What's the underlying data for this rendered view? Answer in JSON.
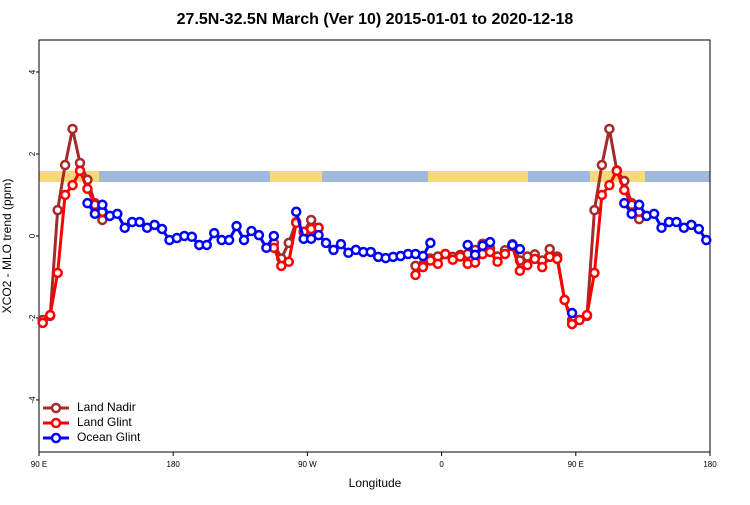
{
  "chart_data": {
    "type": "line",
    "title": "27.5N-32.5N March (Ver 10)   2015-01-01 to 2020-12-18",
    "xlabel": "Longitude",
    "ylabel": "XCO2 - MLO trend (ppm)",
    "xlim": [
      90,
      540
    ],
    "ylim": [
      -5.27,
      4.78
    ],
    "xticks": [
      {
        "value": 90,
        "label": "90 E"
      },
      180,
      {
        "value": 270,
        "label": "90 W"
      },
      {
        "value": 360,
        "label": "0"
      },
      {
        "value": 450,
        "label": "90 E"
      },
      {
        "value": 540,
        "label": "180"
      }
    ],
    "yticks": [
      -4,
      -2,
      0,
      2,
      4
    ],
    "legend": "bottom-left",
    "series": [
      {
        "name": "Land Nadir",
        "color": "#a52a2a",
        "x": [
          92.5,
          97.5,
          102.5,
          107.5,
          112.5,
          117.5,
          122.5,
          127.5,
          132.5,
          137.5,
          142.5,
          147.5,
          152.5,
          157.5,
          162.5,
          167.5,
          172.5,
          177.5,
          182.5,
          187.5,
          192.5,
          197.5,
          202.5,
          207.5,
          212.5,
          217.5,
          222.5,
          227.5,
          232.5,
          237.5,
          242.5,
          247.5,
          252.5,
          257.5,
          262.5,
          267.5,
          272.5,
          277.5,
          282.5,
          287.5,
          292.5,
          297.5,
          302.5,
          307.5,
          312.5,
          317.5,
          322.5,
          327.5,
          332.5,
          337.5,
          342.5,
          347.5,
          352.5,
          357.5,
          362.5,
          367.5,
          372.5,
          377.5,
          382.5,
          387.5,
          392.5,
          397.5,
          402.5,
          407.5,
          412.5,
          417.5,
          422.5,
          427.5,
          432.5,
          437.5,
          442.5,
          447.5,
          452.5,
          457.5,
          462.5,
          467.5,
          472.5,
          477.5,
          482.5,
          487.5,
          492.5
        ],
        "values": [
          -2.05,
          -1.95,
          0.63,
          1.73,
          2.61,
          1.78,
          1.37,
          0.8,
          0.39,
          null,
          null,
          null,
          null,
          null,
          null,
          null,
          null,
          null,
          null,
          null,
          null,
          null,
          null,
          null,
          null,
          null,
          null,
          null,
          null,
          null,
          null,
          -0.17,
          -0.55,
          -0.17,
          0.34,
          0.1,
          0.39,
          0.2,
          null,
          null,
          null,
          null,
          null,
          null,
          null,
          null,
          null,
          null,
          null,
          null,
          -0.73,
          -0.7,
          -0.55,
          -0.5,
          -0.44,
          -0.51,
          -0.46,
          -0.44,
          -0.34,
          -0.19,
          -0.3,
          -0.5,
          -0.35,
          -0.2,
          -0.6,
          -0.5,
          -0.45,
          -0.6,
          -0.32,
          -0.5,
          -1.56,
          -2.05,
          -2.05,
          -1.95,
          0.63,
          1.73,
          2.61,
          1.6,
          1.34,
          0.8,
          0.41
        ]
      },
      {
        "name": "Land Glint",
        "color": "#ff0000",
        "x": [
          92.5,
          97.5,
          102.5,
          107.5,
          112.5,
          117.5,
          122.5,
          127.5,
          132.5,
          137.5,
          142.5,
          147.5,
          152.5,
          157.5,
          162.5,
          167.5,
          172.5,
          177.5,
          182.5,
          187.5,
          192.5,
          197.5,
          202.5,
          207.5,
          212.5,
          217.5,
          222.5,
          227.5,
          232.5,
          237.5,
          242.5,
          247.5,
          252.5,
          257.5,
          262.5,
          267.5,
          272.5,
          277.5,
          282.5,
          287.5,
          292.5,
          297.5,
          302.5,
          307.5,
          312.5,
          317.5,
          322.5,
          327.5,
          332.5,
          337.5,
          342.5,
          347.5,
          352.5,
          357.5,
          362.5,
          367.5,
          372.5,
          377.5,
          382.5,
          387.5,
          392.5,
          397.5,
          402.5,
          407.5,
          412.5,
          417.5,
          422.5,
          427.5,
          432.5,
          437.5,
          442.5,
          447.5,
          452.5,
          457.5,
          462.5,
          467.5,
          472.5,
          477.5,
          482.5,
          487.5,
          492.5
        ],
        "values": [
          -2.12,
          -1.93,
          -0.9,
          1.0,
          1.24,
          1.59,
          1.15,
          0.76,
          0.59,
          null,
          null,
          null,
          null,
          null,
          null,
          null,
          null,
          null,
          null,
          null,
          null,
          null,
          null,
          null,
          null,
          null,
          null,
          null,
          null,
          null,
          null,
          -0.29,
          -0.73,
          -0.63,
          0.32,
          0.1,
          0.17,
          0.2,
          null,
          null,
          null,
          null,
          null,
          null,
          null,
          null,
          null,
          null,
          null,
          null,
          -0.95,
          -0.76,
          -0.6,
          -0.68,
          -0.44,
          -0.58,
          -0.5,
          -0.68,
          -0.65,
          -0.44,
          -0.39,
          -0.63,
          -0.44,
          -0.25,
          -0.85,
          -0.71,
          -0.56,
          -0.76,
          -0.51,
          -0.56,
          -1.56,
          -2.15,
          -2.05,
          -1.93,
          -0.9,
          1.0,
          1.24,
          1.59,
          1.12,
          0.76,
          0.59
        ]
      },
      {
        "name": "Ocean Glint",
        "color": "#0000ff",
        "x": [
          122.5,
          127.5,
          132.5,
          137.5,
          142.5,
          147.5,
          152.5,
          157.5,
          162.5,
          167.5,
          172.5,
          177.5,
          182.5,
          187.5,
          192.5,
          197.5,
          202.5,
          207.5,
          212.5,
          217.5,
          222.5,
          227.5,
          232.5,
          237.5,
          242.5,
          247.5,
          252.5,
          257.5,
          262.5,
          267.5,
          272.5,
          277.5,
          282.5,
          287.5,
          292.5,
          297.5,
          302.5,
          307.5,
          312.5,
          317.5,
          322.5,
          327.5,
          332.5,
          337.5,
          342.5,
          347.5,
          352.5,
          357.5,
          362.5,
          367.5,
          372.5,
          377.5,
          382.5,
          387.5,
          392.5,
          397.5,
          402.5,
          407.5,
          412.5,
          417.5,
          422.5,
          427.5,
          432.5,
          437.5,
          442.5,
          447.5,
          452.5,
          457.5,
          462.5,
          467.5,
          472.5,
          477.5,
          482.5,
          487.5,
          492.5,
          497.5,
          502.5,
          507.5,
          512.5,
          517.5,
          522.5,
          527.5,
          532.5,
          537.5
        ],
        "values": [
          0.8,
          0.54,
          0.76,
          0.49,
          0.54,
          0.2,
          0.34,
          0.34,
          0.2,
          0.27,
          0.17,
          -0.1,
          -0.05,
          0,
          -0.02,
          -0.22,
          -0.22,
          0.07,
          -0.1,
          -0.1,
          0.24,
          -0.1,
          0.12,
          0.02,
          -0.29,
          0,
          null,
          null,
          0.59,
          -0.07,
          -0.07,
          0.02,
          -0.17,
          -0.34,
          -0.2,
          -0.41,
          -0.34,
          -0.39,
          -0.39,
          -0.51,
          -0.54,
          -0.51,
          -0.49,
          -0.44,
          -0.44,
          -0.49,
          -0.17,
          null,
          null,
          null,
          null,
          -0.22,
          -0.46,
          -0.24,
          -0.15,
          null,
          null,
          -0.22,
          -0.32,
          null,
          null,
          null,
          null,
          null,
          null,
          -1.88,
          null,
          null,
          null,
          null,
          null,
          null,
          0.8,
          0.54,
          0.76,
          0.49,
          0.54,
          0.2,
          0.34,
          0.34,
          0.2,
          0.27,
          0.17,
          -0.1
        ]
      }
    ]
  }
}
